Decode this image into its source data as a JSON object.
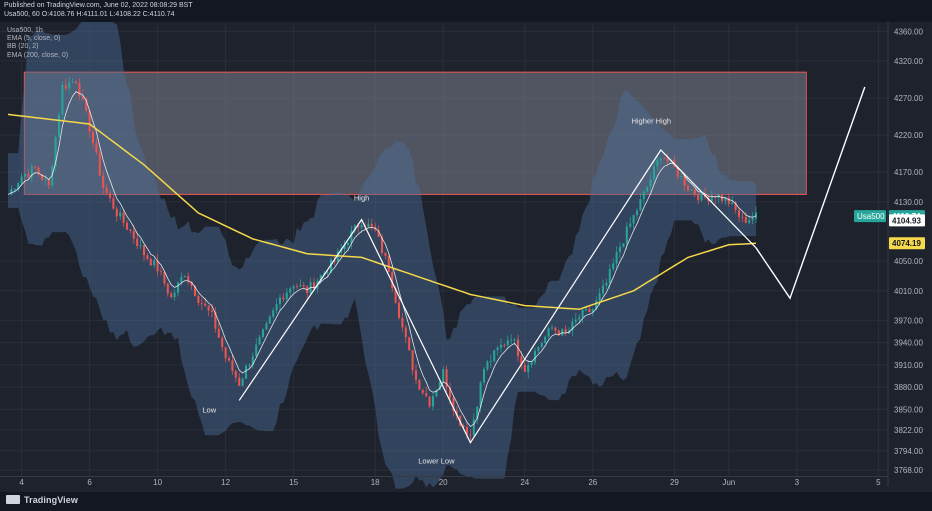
{
  "header": {
    "published": "Published on TradingView.com, June 02, 2022 08:08:29 BST",
    "ohlc": "Usa500, 60  O:4108.76 H:4111.01 L:4108.22 C:4110.74"
  },
  "legend": {
    "symbol": "Usa500, 1h",
    "ema5": "EMA (5, close, 0)",
    "bb": "BB (20, 2)",
    "ema200": "EMA (200, close, 0)"
  },
  "footer": {
    "logo": "TradingView"
  },
  "colors": {
    "background": "#1e222d",
    "grid": "#2a2e39",
    "bull": "#26a69a",
    "bear": "#ef5350",
    "ema200": "#f5d94a",
    "ema5": "#ffffff",
    "bb_fill": "#4b6f9a",
    "zone_fill": "#7a7f8c",
    "zone_border": "#ef5350",
    "pattern_line": "#ffffff",
    "price_tag_usa500": "#26a69a",
    "price_tag_ema200": "#f5d94a"
  },
  "chart_data": {
    "type": "candlestick",
    "timeframe": "1h",
    "x_tick_labels": [
      "4",
      "6",
      "10",
      "12",
      "15",
      "18",
      "20",
      "24",
      "26",
      "29",
      "Jun",
      "3",
      "5"
    ],
    "y_tick_labels": [
      "4360.00",
      "4320.00",
      "4270.00",
      "4220.00",
      "4170.00",
      "4130.00",
      "4050.00",
      "4010.00",
      "3970.00",
      "3940.00",
      "3910.00",
      "3880.00",
      "3850.00",
      "3822.00",
      "3794.00",
      "3768.00"
    ],
    "ylim": [
      3760,
      4370
    ],
    "grid": true,
    "close_path": [
      [
        0,
        4140
      ],
      [
        1,
        4165
      ],
      [
        2,
        4175
      ],
      [
        3,
        4150
      ],
      [
        4,
        4285
      ],
      [
        5,
        4295
      ],
      [
        6,
        4230
      ],
      [
        7,
        4150
      ],
      [
        8,
        4115
      ],
      [
        9,
        4090
      ],
      [
        10,
        4060
      ],
      [
        11,
        4040
      ],
      [
        12,
        4000
      ],
      [
        13,
        4035
      ],
      [
        14,
        4000
      ],
      [
        15,
        3975
      ],
      [
        16,
        3920
      ],
      [
        17,
        3885
      ],
      [
        18,
        3925
      ],
      [
        19,
        3960
      ],
      [
        20,
        4000
      ],
      [
        21,
        4020
      ],
      [
        22,
        4010
      ],
      [
        23,
        4030
      ],
      [
        24,
        4050
      ],
      [
        25,
        4080
      ],
      [
        26,
        4105
      ],
      [
        27,
        4090
      ],
      [
        28,
        4040
      ],
      [
        29,
        3960
      ],
      [
        30,
        3890
      ],
      [
        31,
        3860
      ],
      [
        32,
        3900
      ],
      [
        33,
        3840
      ],
      [
        34,
        3815
      ],
      [
        35,
        3905
      ],
      [
        36,
        3930
      ],
      [
        37,
        3950
      ],
      [
        38,
        3905
      ],
      [
        39,
        3935
      ],
      [
        40,
        3960
      ],
      [
        41,
        3950
      ],
      [
        42,
        3975
      ],
      [
        43,
        3985
      ],
      [
        44,
        4020
      ],
      [
        45,
        4070
      ],
      [
        46,
        4110
      ],
      [
        47,
        4150
      ],
      [
        48,
        4195
      ],
      [
        49,
        4175
      ],
      [
        50,
        4150
      ],
      [
        51,
        4135
      ],
      [
        52,
        4140
      ],
      [
        53,
        4130
      ],
      [
        54,
        4105
      ],
      [
        55,
        4110
      ]
    ],
    "ema200": [
      [
        0,
        4248
      ],
      [
        6,
        4235
      ],
      [
        10,
        4180
      ],
      [
        14,
        4115
      ],
      [
        18,
        4080
      ],
      [
        22,
        4060
      ],
      [
        26,
        4055
      ],
      [
        30,
        4030
      ],
      [
        34,
        4005
      ],
      [
        38,
        3990
      ],
      [
        42,
        3985
      ],
      [
        46,
        4010
      ],
      [
        50,
        4055
      ],
      [
        53,
        4072
      ],
      [
        55,
        4074
      ]
    ],
    "zone": {
      "label_top": "Higher High",
      "label_bottom": "High",
      "y_range": [
        4140,
        4305
      ]
    },
    "pattern_points": [
      {
        "label": "Low",
        "at": [
          17,
          3862
        ]
      },
      {
        "label": "High",
        "at": [
          26,
          4106
        ]
      },
      {
        "label": "Lower Low",
        "at": [
          34,
          3805
        ]
      },
      {
        "label": "Higher High",
        "at": [
          48,
          4200
        ]
      },
      {
        "label": "",
        "at": [
          55,
          4068
        ]
      },
      {
        "label": "",
        "at": [
          57.5,
          4000
        ]
      },
      {
        "label": "",
        "at": [
          63,
          4285
        ]
      }
    ],
    "price_tags": [
      {
        "label": "Usa500",
        "value": "4110.74"
      },
      {
        "label": "",
        "value": "4104.93"
      },
      {
        "label": "",
        "value": "4074.19"
      }
    ]
  }
}
